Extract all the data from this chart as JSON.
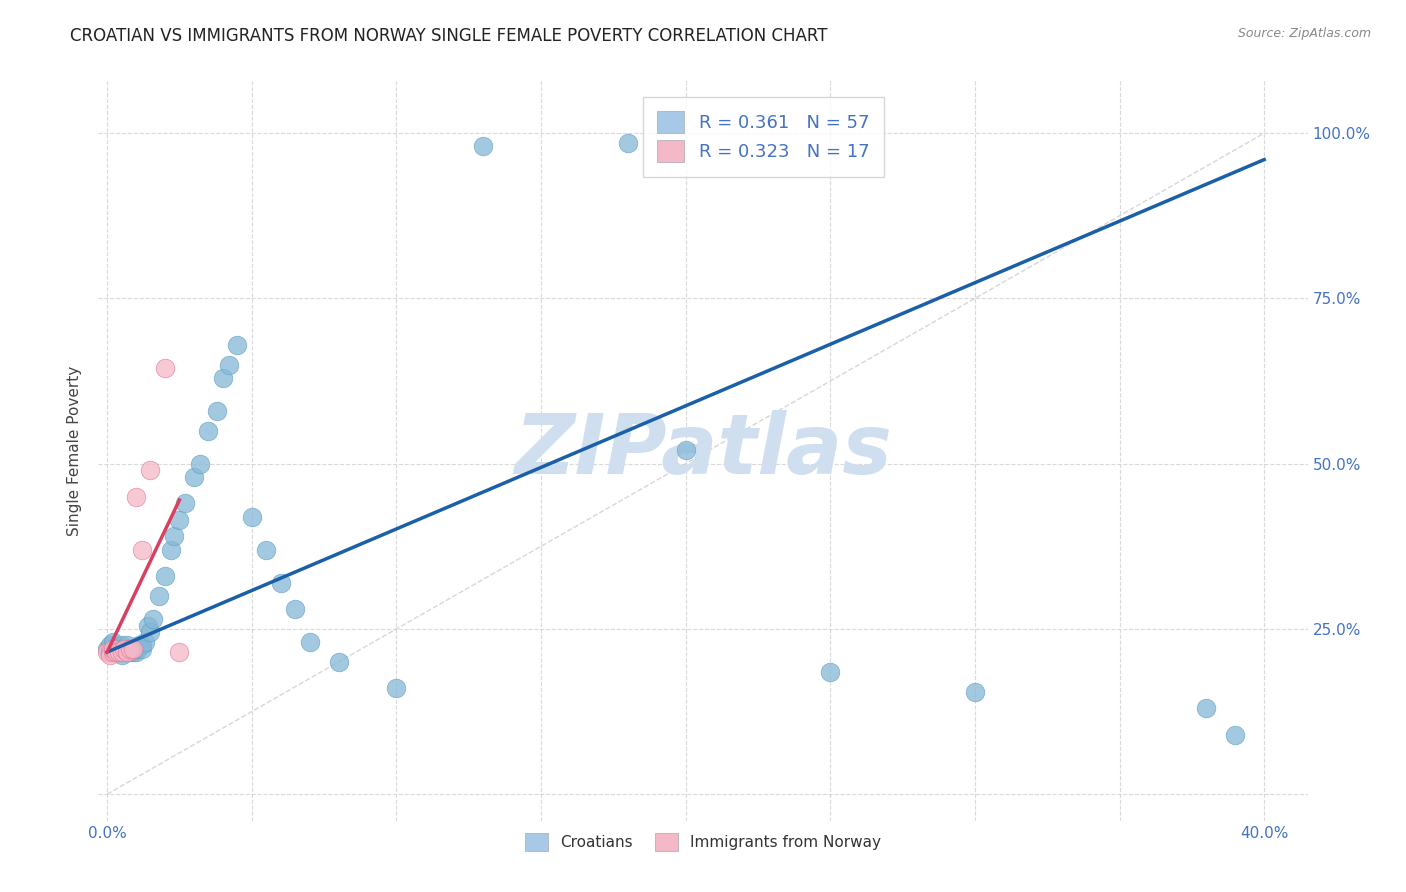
{
  "title": "CROATIAN VS IMMIGRANTS FROM NORWAY SINGLE FEMALE POVERTY CORRELATION CHART",
  "source": "Source: ZipAtlas.com",
  "ylabel": "Single Female Poverty",
  "xlim": [
    -0.003,
    0.415
  ],
  "ylim": [
    -0.04,
    1.08
  ],
  "x_tick_positions": [
    0.0,
    0.05,
    0.1,
    0.15,
    0.2,
    0.25,
    0.3,
    0.35,
    0.4
  ],
  "x_tick_labels": [
    "0.0%",
    "",
    "",
    "",
    "",
    "",
    "",
    "",
    "40.0%"
  ],
  "y_tick_positions": [
    0.0,
    0.25,
    0.5,
    0.75,
    1.0
  ],
  "y_tick_labels_right": [
    "",
    "25.0%",
    "50.0%",
    "75.0%",
    "100.0%"
  ],
  "croatian_x": [
    0.0,
    0.001,
    0.001,
    0.002,
    0.002,
    0.003,
    0.003,
    0.004,
    0.004,
    0.005,
    0.005,
    0.005,
    0.005,
    0.006,
    0.006,
    0.007,
    0.007,
    0.008,
    0.008,
    0.009,
    0.009,
    0.01,
    0.01,
    0.011,
    0.012,
    0.012,
    0.013,
    0.014,
    0.015,
    0.016,
    0.018,
    0.02,
    0.022,
    0.023,
    0.025,
    0.027,
    0.03,
    0.032,
    0.035,
    0.038,
    0.04,
    0.042,
    0.045,
    0.05,
    0.055,
    0.06,
    0.065,
    0.07,
    0.08,
    0.1,
    0.13,
    0.18,
    0.2,
    0.25,
    0.3,
    0.38,
    0.39
  ],
  "croatian_y": [
    0.22,
    0.225,
    0.215,
    0.22,
    0.23,
    0.215,
    0.22,
    0.215,
    0.22,
    0.215,
    0.22,
    0.21,
    0.225,
    0.215,
    0.22,
    0.22,
    0.225,
    0.215,
    0.22,
    0.22,
    0.215,
    0.215,
    0.22,
    0.225,
    0.225,
    0.22,
    0.23,
    0.255,
    0.245,
    0.265,
    0.3,
    0.33,
    0.37,
    0.39,
    0.415,
    0.44,
    0.48,
    0.5,
    0.55,
    0.58,
    0.63,
    0.65,
    0.68,
    0.42,
    0.37,
    0.32,
    0.28,
    0.23,
    0.2,
    0.16,
    0.98,
    0.985,
    0.52,
    0.185,
    0.155,
    0.13,
    0.09
  ],
  "norway_x": [
    0.0,
    0.001,
    0.001,
    0.002,
    0.002,
    0.003,
    0.004,
    0.005,
    0.006,
    0.007,
    0.008,
    0.009,
    0.01,
    0.012,
    0.015,
    0.02,
    0.025
  ],
  "norway_y": [
    0.215,
    0.215,
    0.21,
    0.215,
    0.22,
    0.215,
    0.215,
    0.215,
    0.22,
    0.215,
    0.22,
    0.22,
    0.45,
    0.37,
    0.49,
    0.645,
    0.215
  ],
  "blue_line": {
    "x0": 0.0,
    "y0": 0.215,
    "x1": 0.4,
    "y1": 0.96
  },
  "pink_line": {
    "x0": 0.0,
    "y0": 0.215,
    "x1": 0.025,
    "y1": 0.445
  },
  "diag_line": {
    "x0": 0.0,
    "y0": 0.0,
    "x1": 0.4,
    "y1": 1.0
  },
  "background_color": "#ffffff",
  "grid_color": "#d0d0d0",
  "blue_dot_color": "#85b8d8",
  "blue_dot_edge": "#5a9cbf",
  "pink_dot_color": "#f5b8c8",
  "pink_dot_edge": "#e07090",
  "blue_line_color": "#1a5fa8",
  "pink_line_color": "#d94060",
  "diag_line_color": "#cccccc",
  "title_color": "#222222",
  "ylabel_color": "#444444",
  "tick_color": "#4472c4",
  "watermark_text": "ZIPatlas",
  "watermark_color": "#d0dff0",
  "legend1_label": "R = 0.361   N = 57",
  "legend2_label": "R = 0.323   N = 17",
  "legend_patch_color1": "#a8c8e8",
  "legend_patch_color2": "#f5b8c8",
  "cat_label1": "Croatians",
  "cat_label2": "Immigrants from Norway"
}
